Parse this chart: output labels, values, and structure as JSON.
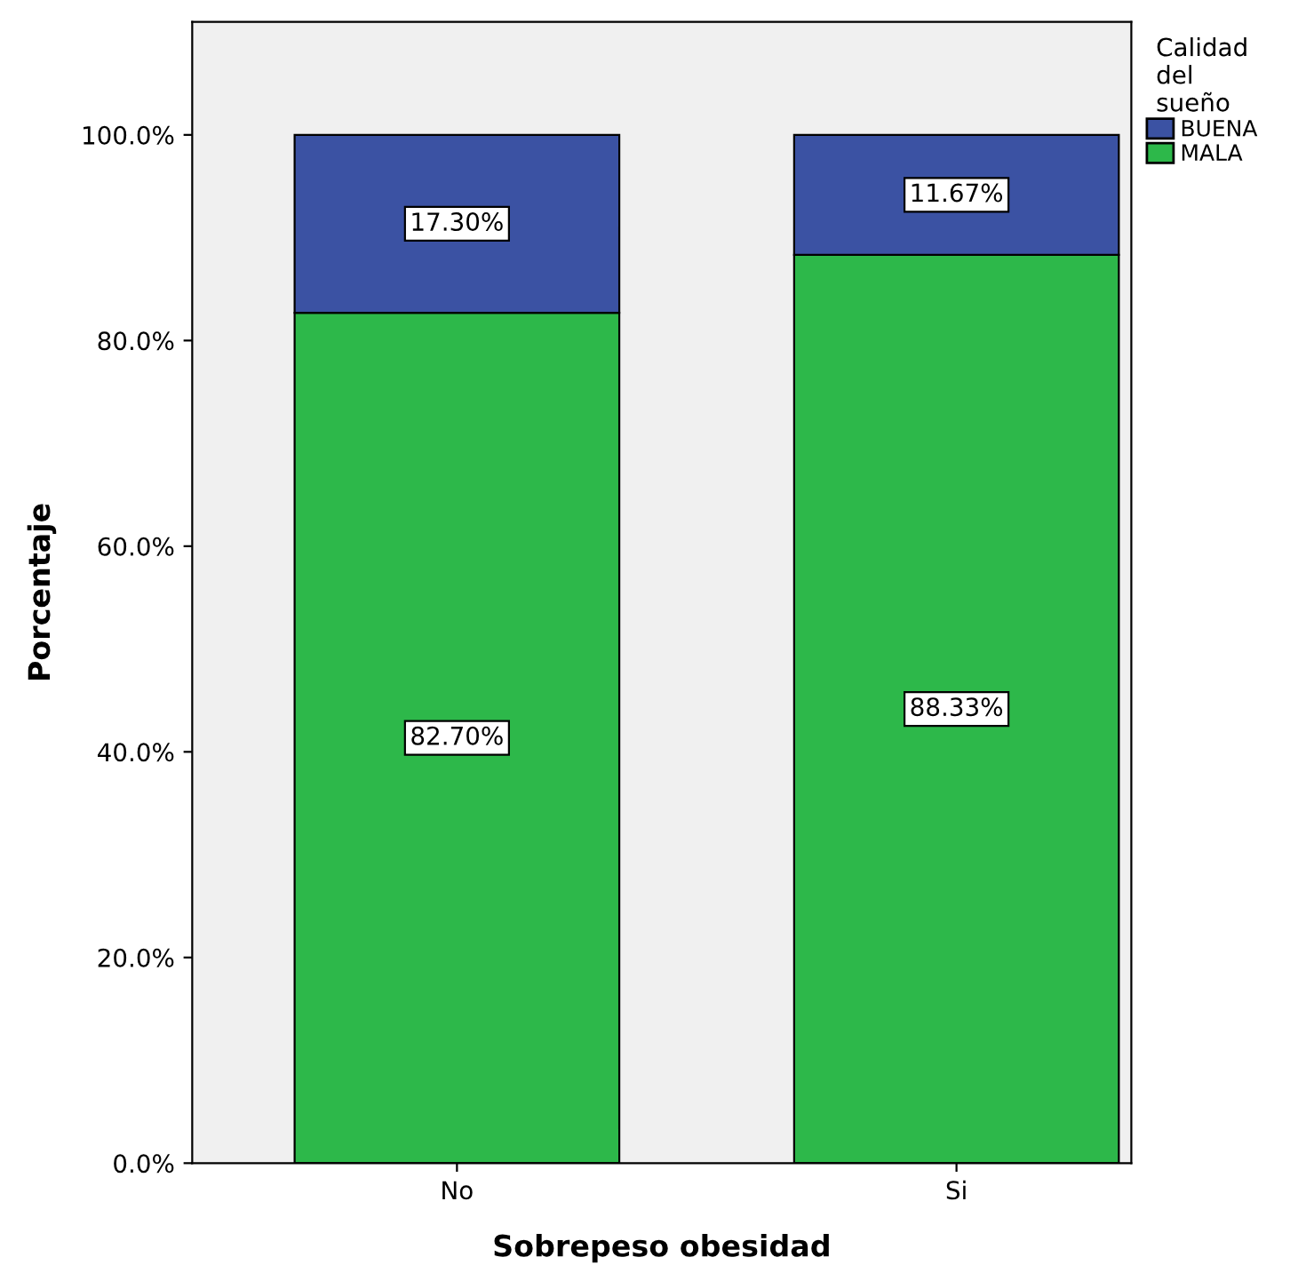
{
  "chart_data": {
    "type": "bar",
    "stacked": true,
    "xlabel": "Sobrepeso obesidad",
    "ylabel": "Porcentaje",
    "legend_title": "Calidad\ndel\nsueño",
    "legend": "right",
    "categories": [
      "No",
      "Si"
    ],
    "series": [
      {
        "name": "MALA",
        "color": "#2db84a",
        "values": [
          82.7,
          88.33
        ],
        "value_labels": [
          "82.70%",
          "88.33%"
        ]
      },
      {
        "name": "BUENA",
        "color": "#3b52a3",
        "values": [
          17.3,
          11.67
        ],
        "value_labels": [
          "17.30%",
          "11.67%"
        ]
      }
    ],
    "ylim": [
      0,
      111
    ],
    "yticks": [
      {
        "value": 0,
        "label": "0.0%"
      },
      {
        "value": 20,
        "label": "20.0%"
      },
      {
        "value": 40,
        "label": "40.0%"
      },
      {
        "value": 60,
        "label": "60.0%"
      },
      {
        "value": 80,
        "label": "80.0%"
      },
      {
        "value": 100,
        "label": "100.0%"
      }
    ],
    "grid": false
  }
}
